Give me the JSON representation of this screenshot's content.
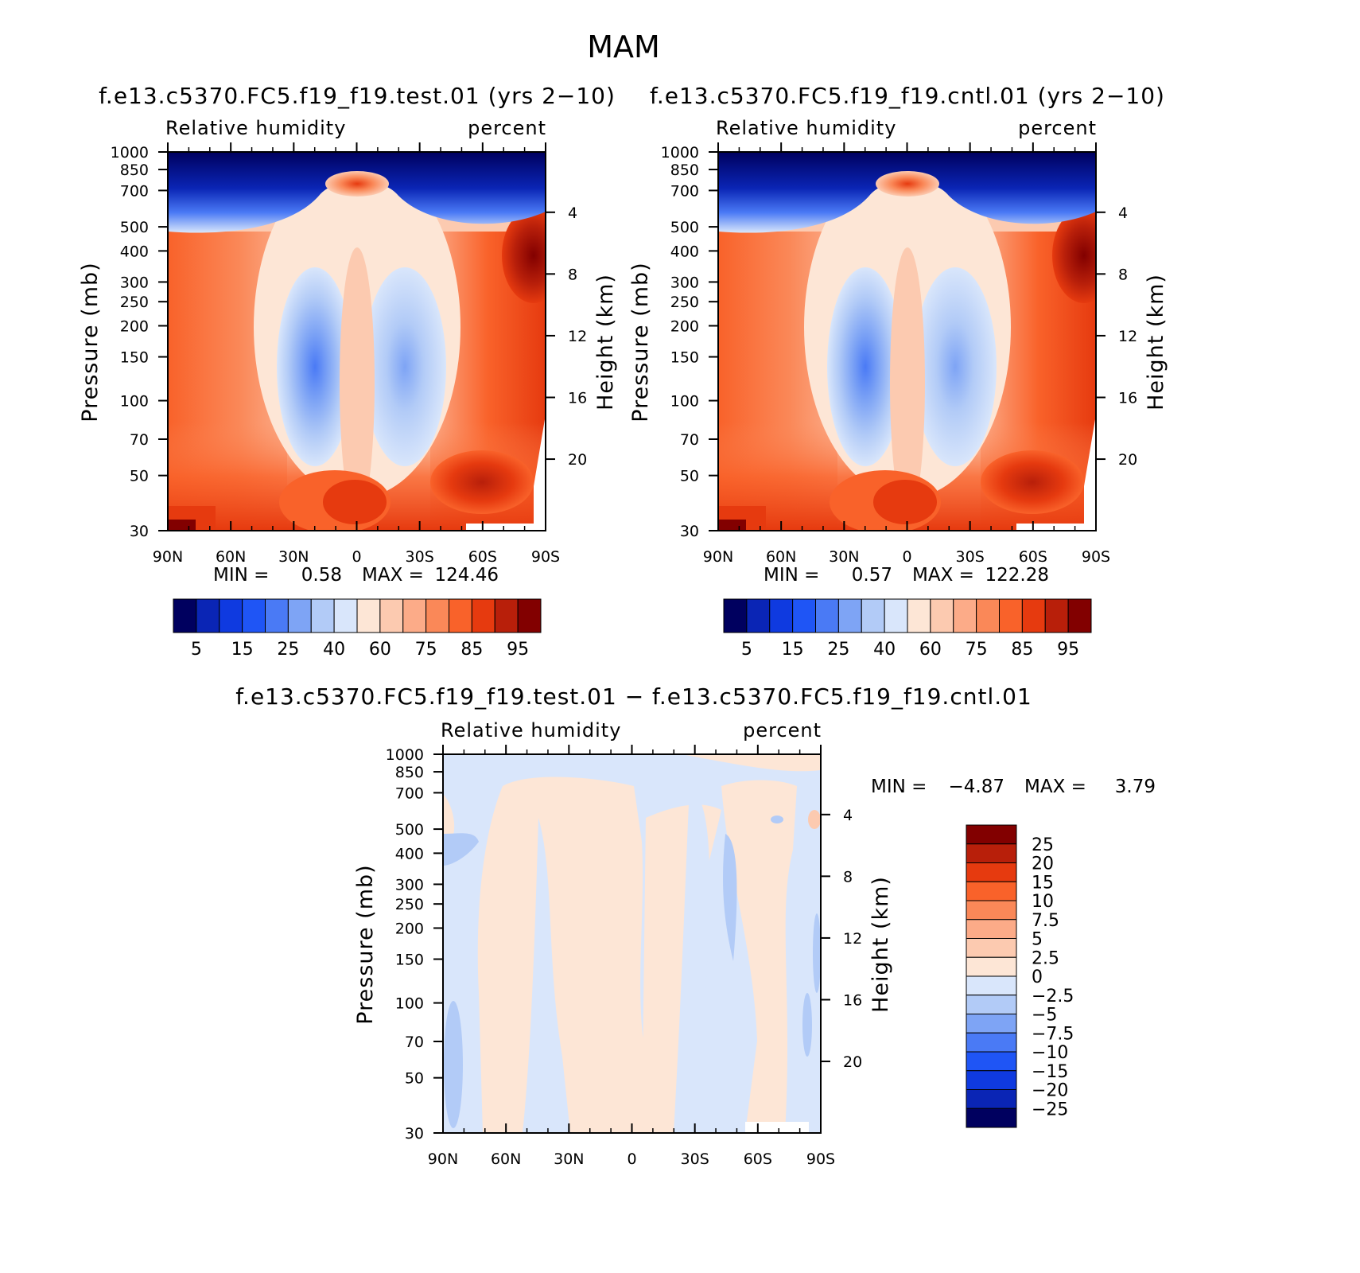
{
  "figure_title": "MAM",
  "chart_data": [
    {
      "type": "heatmap",
      "id": "test",
      "title": "f.e13.c5370.FC5.f19_f19.test.01 (yrs 2−10)",
      "left_string": "Relative humidity",
      "right_string": "percent",
      "xlabel": "",
      "ylabel": "Pressure (mb)",
      "ylabel_right": "Height (km)",
      "x_ticks": [
        "90N",
        "60N",
        "30N",
        "0",
        "30S",
        "60S",
        "90S"
      ],
      "x_range": [
        90,
        -90
      ],
      "y_ticks": [
        30,
        50,
        70,
        100,
        150,
        200,
        250,
        300,
        400,
        500,
        700,
        850,
        1000
      ],
      "y_range": [
        1000,
        30
      ],
      "y_scale": "log",
      "height_ticks": [
        20,
        16,
        12,
        8,
        4
      ],
      "min_label": "MIN =",
      "min_value": "0.58",
      "max_label": "MAX =",
      "max_value": "124.46",
      "colorbar_orientation": "horizontal",
      "colorbar_labels": [
        "5",
        "15",
        "25",
        "40",
        "60",
        "75",
        "85",
        "95"
      ]
    },
    {
      "type": "heatmap",
      "id": "cntl",
      "title": "f.e13.c5370.FC5.f19_f19.cntl.01 (yrs 2−10)",
      "left_string": "Relative humidity",
      "right_string": "percent",
      "xlabel": "",
      "ylabel": "Pressure (mb)",
      "ylabel_right": "Height (km)",
      "x_ticks": [
        "90N",
        "60N",
        "30N",
        "0",
        "30S",
        "60S",
        "90S"
      ],
      "x_range": [
        90,
        -90
      ],
      "y_ticks": [
        30,
        50,
        70,
        100,
        150,
        200,
        250,
        300,
        400,
        500,
        700,
        850,
        1000
      ],
      "y_range": [
        1000,
        30
      ],
      "y_scale": "log",
      "height_ticks": [
        20,
        16,
        12,
        8,
        4
      ],
      "min_label": "MIN =",
      "min_value": "0.57",
      "max_label": "MAX =",
      "max_value": "122.28",
      "colorbar_orientation": "horizontal",
      "colorbar_labels": [
        "5",
        "15",
        "25",
        "40",
        "60",
        "75",
        "85",
        "95"
      ]
    },
    {
      "type": "heatmap",
      "id": "diff",
      "title": "f.e13.c5370.FC5.f19_f19.test.01 − f.e13.c5370.FC5.f19_f19.cntl.01",
      "left_string": "Relative humidity",
      "right_string": "percent",
      "xlabel": "",
      "ylabel": "Pressure (mb)",
      "ylabel_right": "Height (km)",
      "x_ticks": [
        "90N",
        "60N",
        "30N",
        "0",
        "30S",
        "60S",
        "90S"
      ],
      "x_range": [
        90,
        -90
      ],
      "y_ticks": [
        30,
        50,
        70,
        100,
        150,
        200,
        250,
        300,
        400,
        500,
        700,
        850,
        1000
      ],
      "y_range": [
        1000,
        30
      ],
      "y_scale": "log",
      "height_ticks": [
        20,
        16,
        12,
        8,
        4
      ],
      "min_label": "MIN =",
      "min_value": "−4.87",
      "max_label": "MAX =",
      "max_value": "3.79",
      "colorbar_orientation": "vertical",
      "colorbar_labels": [
        "25",
        "20",
        "15",
        "10",
        "7.5",
        "5",
        "2.5",
        "0",
        "−2.5",
        "−5",
        "−7.5",
        "−10",
        "−15",
        "−20",
        "−25"
      ]
    }
  ],
  "colors": {
    "abs_scale": [
      "#00005f",
      "#0a25b5",
      "#0f3ae0",
      "#1f55f5",
      "#4a7af5",
      "#7ea4f5",
      "#b2cbf7",
      "#d9e6fb",
      "#fde6d6",
      "#fccab0",
      "#fcab88",
      "#fa8858",
      "#f9622a",
      "#e63a0f",
      "#b81f0a",
      "#820000"
    ],
    "diff_scale": [
      "#820000",
      "#b81f0a",
      "#e63a0f",
      "#f9622a",
      "#fa8858",
      "#fcab88",
      "#fccab0",
      "#fde6d6",
      "#d9e6fb",
      "#b2cbf7",
      "#7ea4f5",
      "#4a7af5",
      "#1f55f5",
      "#0f3ae0",
      "#0a25b5",
      "#00005f"
    ]
  }
}
